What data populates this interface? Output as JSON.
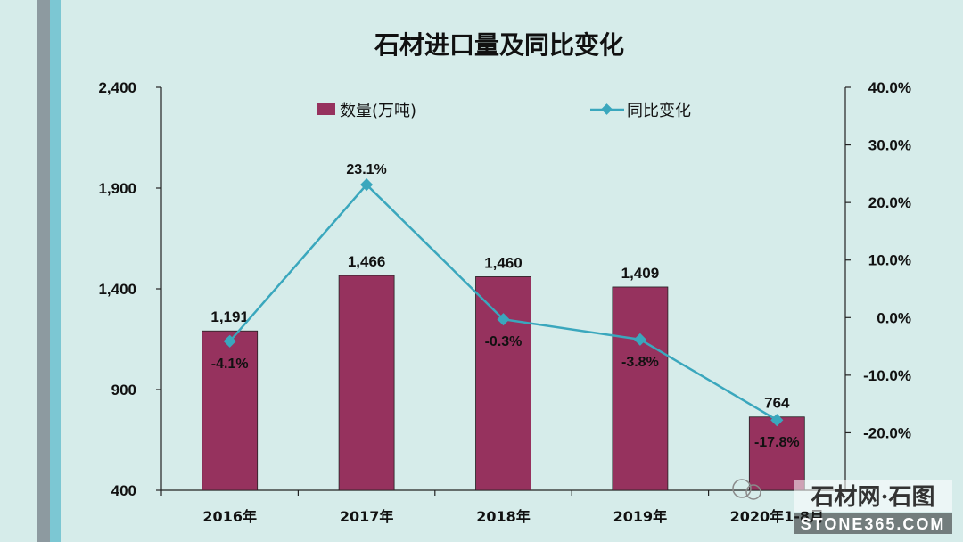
{
  "chart_data": {
    "type": "bar",
    "title": "石材进口量及同比变化",
    "categories": [
      "2016年",
      "2017年",
      "2018年",
      "2019年",
      "2020年1-8月"
    ],
    "series": [
      {
        "name": "数量(万吨)",
        "type": "bar",
        "axis": "left",
        "values": [
          1191,
          1466,
          1460,
          1409,
          764
        ],
        "labels": [
          "1,191",
          "1,466",
          "1,460",
          "1,409",
          "764"
        ],
        "color": "#96325e"
      },
      {
        "name": "同比变化",
        "type": "line",
        "axis": "right",
        "values": [
          -4.1,
          23.1,
          -0.3,
          -3.8,
          -17.8
        ],
        "labels": [
          "-4.1%",
          "23.1%",
          "-0.3%",
          "-3.8%",
          "-17.8%"
        ],
        "color": "#3aa7bd"
      }
    ],
    "y_left": {
      "ylim": [
        400,
        2400
      ],
      "ticks": [
        "2,400",
        "1,900",
        "1,400",
        "900",
        "400"
      ],
      "tick_values": [
        2400,
        1900,
        1400,
        900,
        400
      ]
    },
    "y_right": {
      "ylim": [
        -30,
        40
      ],
      "ticks": [
        "40.0%",
        "30.0%",
        "20.0%",
        "10.0%",
        "0.0%",
        "-10.0%",
        "-20.0%"
      ],
      "tick_values": [
        40,
        30,
        20,
        10,
        0,
        -10,
        -20
      ]
    },
    "grid": false,
    "legend_position": "top"
  },
  "watermark": {
    "text_cn": "石材网·石图",
    "text_en": "STONE365.COM"
  },
  "colors": {
    "background": "#d6ecea",
    "bar": "#96325e",
    "line": "#3aa7bd"
  }
}
